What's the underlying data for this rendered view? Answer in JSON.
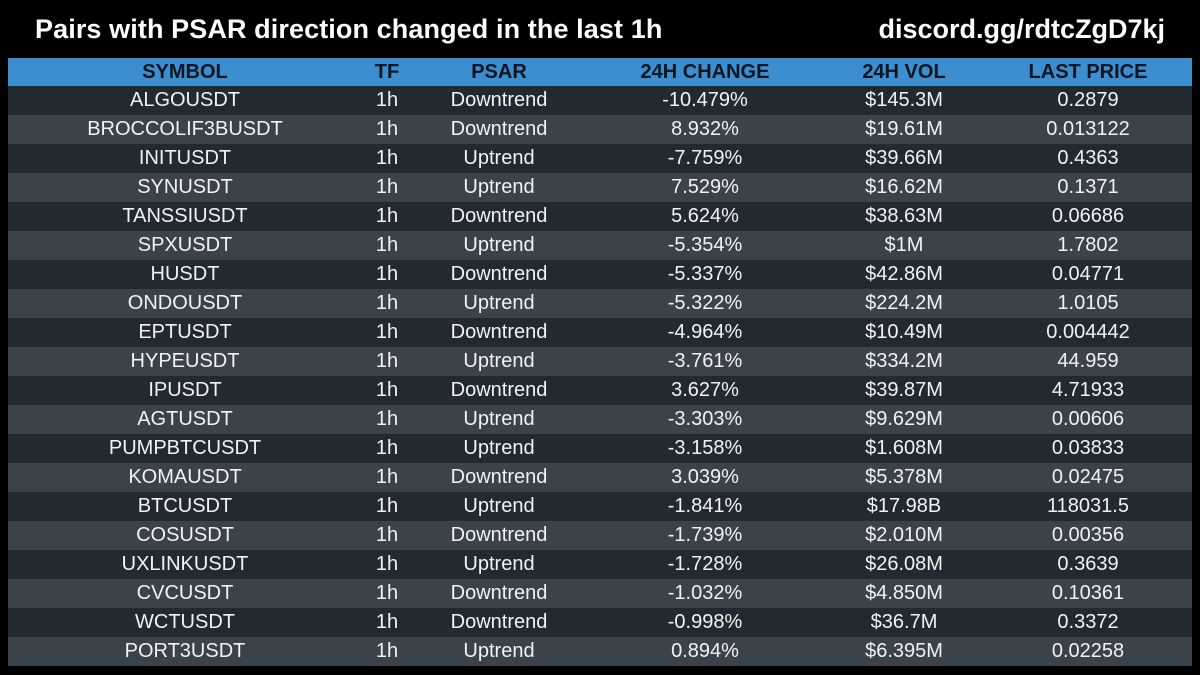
{
  "header": {
    "title": "Pairs with PSAR direction changed in the last 1h",
    "invite": "discord.gg/rdtcZgD7kj"
  },
  "colors": {
    "background": "#000000",
    "header_row": "#3d8ecf",
    "row_dark": "#212a31",
    "row_light": "#3a424a",
    "text": "#ffffff"
  },
  "table": {
    "columns": [
      "SYMBOL",
      "TF",
      "PSAR",
      "24H CHANGE",
      "24H VOL",
      "LAST PRICE"
    ],
    "rows": [
      [
        "ALGOUSDT",
        "1h",
        "Downtrend",
        "-10.479%",
        "$145.3M",
        "0.2879"
      ],
      [
        "BROCCOLIF3BUSDT",
        "1h",
        "Downtrend",
        "8.932%",
        "$19.61M",
        "0.013122"
      ],
      [
        "INITUSDT",
        "1h",
        "Uptrend",
        "-7.759%",
        "$39.66M",
        "0.4363"
      ],
      [
        "SYNUSDT",
        "1h",
        "Uptrend",
        "7.529%",
        "$16.62M",
        "0.1371"
      ],
      [
        "TANSSIUSDT",
        "1h",
        "Downtrend",
        "5.624%",
        "$38.63M",
        "0.06686"
      ],
      [
        "SPXUSDT",
        "1h",
        "Uptrend",
        "-5.354%",
        "$1M",
        "1.7802"
      ],
      [
        "HUSDT",
        "1h",
        "Downtrend",
        "-5.337%",
        "$42.86M",
        "0.04771"
      ],
      [
        "ONDOUSDT",
        "1h",
        "Uptrend",
        "-5.322%",
        "$224.2M",
        "1.0105"
      ],
      [
        "EPTUSDT",
        "1h",
        "Downtrend",
        "-4.964%",
        "$10.49M",
        "0.004442"
      ],
      [
        "HYPEUSDT",
        "1h",
        "Uptrend",
        "-3.761%",
        "$334.2M",
        "44.959"
      ],
      [
        "IPUSDT",
        "1h",
        "Downtrend",
        "3.627%",
        "$39.87M",
        "4.71933"
      ],
      [
        "AGTUSDT",
        "1h",
        "Uptrend",
        "-3.303%",
        "$9.629M",
        "0.00606"
      ],
      [
        "PUMPBTCUSDT",
        "1h",
        "Uptrend",
        "-3.158%",
        "$1.608M",
        "0.03833"
      ],
      [
        "KOMAUSDT",
        "1h",
        "Downtrend",
        "3.039%",
        "$5.378M",
        "0.02475"
      ],
      [
        "BTCUSDT",
        "1h",
        "Uptrend",
        "-1.841%",
        "$17.98B",
        "118031.5"
      ],
      [
        "COSUSDT",
        "1h",
        "Downtrend",
        "-1.739%",
        "$2.010M",
        "0.00356"
      ],
      [
        "UXLINKUSDT",
        "1h",
        "Uptrend",
        "-1.728%",
        "$26.08M",
        "0.3639"
      ],
      [
        "CVCUSDT",
        "1h",
        "Downtrend",
        "-1.032%",
        "$4.850M",
        "0.10361"
      ],
      [
        "WCTUSDT",
        "1h",
        "Downtrend",
        "-0.998%",
        "$36.7M",
        "0.3372"
      ],
      [
        "PORT3USDT",
        "1h",
        "Uptrend",
        "0.894%",
        "$6.395M",
        "0.02258"
      ]
    ]
  }
}
